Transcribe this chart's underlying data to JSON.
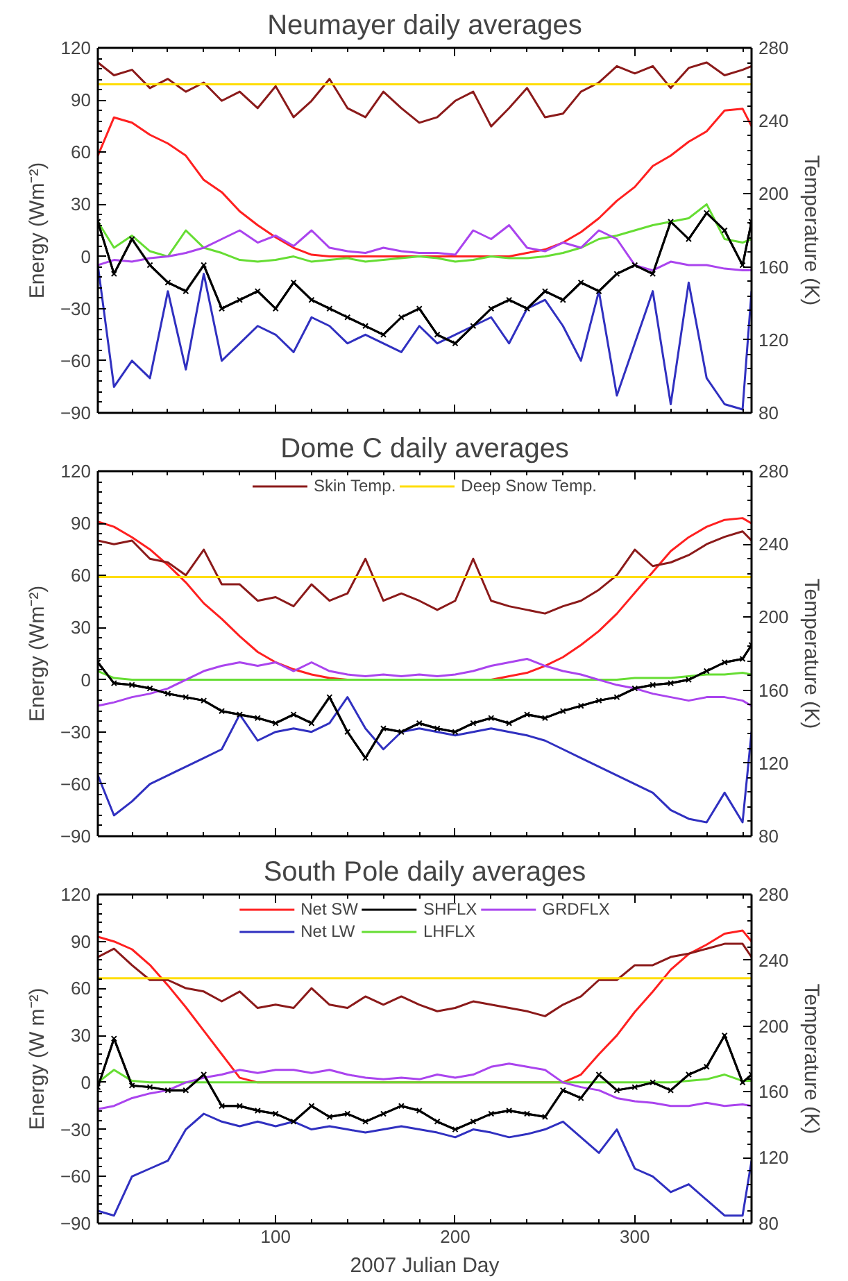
{
  "chart_data": [
    {
      "type": "line",
      "title": "Neumayer daily averages",
      "ylabel": "Energy (Wm⁻²)",
      "y2label": "Temperature (K)",
      "x": [
        1,
        10,
        20,
        30,
        40,
        50,
        60,
        70,
        80,
        90,
        100,
        110,
        120,
        130,
        140,
        150,
        160,
        170,
        180,
        190,
        200,
        210,
        220,
        230,
        240,
        250,
        260,
        270,
        280,
        290,
        300,
        310,
        320,
        330,
        340,
        350,
        360,
        365
      ],
      "xlim": [
        1,
        365
      ],
      "xticks": [
        100,
        200,
        300
      ],
      "ylim": [
        -90,
        120
      ],
      "yticks": [
        -90,
        -60,
        -30,
        0,
        30,
        60,
        90,
        120
      ],
      "y2lim": [
        80,
        280
      ],
      "y2ticks": [
        80,
        120,
        160,
        200,
        240,
        280
      ],
      "tick_labels": "y",
      "grid": false,
      "series": [
        {
          "color": "#ff2020",
          "values": [
            58,
            80,
            77,
            70,
            65,
            58,
            44,
            37,
            26,
            18,
            11,
            5,
            1,
            0,
            0,
            0,
            0,
            0,
            0,
            0,
            0,
            0,
            0,
            0,
            2,
            4,
            8,
            14,
            22,
            32,
            40,
            52,
            58,
            66,
            72,
            84,
            85,
            75
          ]
        },
        {
          "color": "#3030c0",
          "values": [
            -5,
            -75,
            -60,
            -70,
            -20,
            -65,
            -10,
            -60,
            -50,
            -40,
            -45,
            -55,
            -35,
            -40,
            -50,
            -45,
            -50,
            -55,
            -40,
            -50,
            -45,
            -40,
            -35,
            -50,
            -30,
            -25,
            -40,
            -60,
            -20,
            -80,
            -50,
            -20,
            -85,
            -15,
            -70,
            -85,
            -88,
            -20
          ]
        },
        {
          "color": "#000000",
          "marker": "cross",
          "values": [
            20,
            -10,
            10,
            -5,
            -15,
            -20,
            -5,
            -30,
            -25,
            -20,
            -30,
            -15,
            -25,
            -30,
            -35,
            -40,
            -45,
            -35,
            -30,
            -45,
            -50,
            -40,
            -30,
            -25,
            -30,
            -20,
            -25,
            -15,
            -20,
            -10,
            -5,
            -10,
            20,
            10,
            25,
            15,
            -5,
            20
          ]
        },
        {
          "color": "#66dd33",
          "values": [
            20,
            5,
            12,
            3,
            0,
            15,
            5,
            2,
            -2,
            -3,
            -2,
            0,
            -3,
            -2,
            -1,
            -3,
            -2,
            -1,
            0,
            -1,
            -3,
            -2,
            0,
            -1,
            -1,
            0,
            2,
            5,
            10,
            12,
            15,
            18,
            20,
            22,
            30,
            10,
            8,
            10
          ]
        },
        {
          "color": "#aa44ee",
          "values": [
            -5,
            -2,
            -3,
            -1,
            0,
            2,
            5,
            10,
            15,
            8,
            12,
            6,
            15,
            5,
            3,
            2,
            5,
            3,
            2,
            2,
            1,
            15,
            10,
            18,
            5,
            3,
            8,
            5,
            15,
            10,
            -5,
            -8,
            -3,
            -5,
            -5,
            -7,
            -8,
            -8
          ]
        },
        {
          "color": "#8b1a1a",
          "axis": "y2",
          "values": [
            272,
            265,
            268,
            258,
            263,
            256,
            261,
            251,
            256,
            247,
            259,
            242,
            251,
            263,
            247,
            242,
            256,
            247,
            239,
            242,
            251,
            256,
            237,
            247,
            258,
            242,
            244,
            256,
            261,
            270,
            266,
            270,
            258,
            269,
            272,
            265,
            268,
            270
          ]
        },
        {
          "color": "#ffdd00",
          "axis": "y2",
          "values": [
            260,
            260,
            260,
            260,
            260,
            260,
            260,
            260,
            260,
            260,
            260,
            260,
            260,
            260,
            260,
            260,
            260,
            260,
            260,
            260,
            260,
            260,
            260,
            260,
            260,
            260,
            260,
            260,
            260,
            260,
            260,
            260,
            260,
            260,
            260,
            260,
            260,
            260
          ]
        }
      ]
    },
    {
      "type": "line",
      "title": "Dome C daily averages",
      "ylabel": "Energy (Wm⁻²)",
      "y2label": "Temperature (K)",
      "x": [
        1,
        10,
        20,
        30,
        40,
        50,
        60,
        70,
        80,
        90,
        100,
        110,
        120,
        130,
        140,
        150,
        160,
        170,
        180,
        190,
        200,
        210,
        220,
        230,
        240,
        250,
        260,
        270,
        280,
        290,
        300,
        310,
        320,
        330,
        340,
        350,
        360,
        365
      ],
      "xlim": [
        1,
        365
      ],
      "xticks": [
        100,
        200,
        300
      ],
      "ylim": [
        -90,
        120
      ],
      "yticks": [
        -90,
        -60,
        -30,
        0,
        30,
        60,
        90,
        120
      ],
      "y2lim": [
        80,
        280
      ],
      "y2ticks": [
        80,
        120,
        160,
        200,
        240,
        280
      ],
      "tick_labels": "y",
      "grid": false,
      "legend": "top",
      "series": [
        {
          "color": "#ff2020",
          "values": [
            91,
            88,
            82,
            75,
            66,
            56,
            44,
            35,
            25,
            16,
            10,
            6,
            3,
            1,
            0,
            0,
            0,
            0,
            0,
            0,
            0,
            0,
            0,
            2,
            4,
            8,
            13,
            20,
            28,
            38,
            50,
            62,
            74,
            82,
            88,
            92,
            93,
            90
          ]
        },
        {
          "color": "#3030c0",
          "values": [
            -55,
            -78,
            -70,
            -60,
            -55,
            -50,
            -45,
            -40,
            -20,
            -35,
            -30,
            -28,
            -30,
            -25,
            -10,
            -28,
            -40,
            -30,
            -28,
            -30,
            -32,
            -30,
            -28,
            -30,
            -32,
            -35,
            -40,
            -45,
            -50,
            -55,
            -60,
            -65,
            -75,
            -80,
            -82,
            -65,
            -82,
            -30
          ]
        },
        {
          "color": "#000000",
          "marker": "cross",
          "values": [
            10,
            -2,
            -3,
            -5,
            -8,
            -10,
            -12,
            -18,
            -20,
            -22,
            -25,
            -20,
            -25,
            -10,
            -30,
            -45,
            -28,
            -30,
            -25,
            -28,
            -30,
            -25,
            -22,
            -25,
            -20,
            -22,
            -18,
            -15,
            -12,
            -10,
            -5,
            -3,
            -2,
            0,
            5,
            10,
            12,
            20
          ]
        },
        {
          "color": "#66dd33",
          "values": [
            5,
            1,
            0,
            0,
            0,
            0,
            0,
            0,
            0,
            0,
            0,
            0,
            0,
            0,
            0,
            0,
            0,
            0,
            0,
            0,
            0,
            0,
            0,
            0,
            0,
            0,
            0,
            0,
            0,
            0,
            1,
            1,
            1,
            2,
            3,
            3,
            4,
            3
          ]
        },
        {
          "color": "#aa44ee",
          "values": [
            -15,
            -13,
            -10,
            -8,
            -5,
            0,
            5,
            8,
            10,
            8,
            10,
            5,
            10,
            5,
            3,
            2,
            3,
            2,
            3,
            2,
            3,
            5,
            8,
            10,
            12,
            8,
            5,
            3,
            0,
            -3,
            -5,
            -8,
            -10,
            -12,
            -10,
            -10,
            -12,
            -15
          ]
        },
        {
          "name": "Skin Temp.",
          "color": "#8b1a1a",
          "axis": "y2",
          "values": [
            242,
            240,
            242,
            232,
            230,
            223,
            237,
            218,
            218,
            209,
            211,
            206,
            218,
            209,
            213,
            232,
            209,
            213,
            209,
            204,
            209,
            232,
            209,
            206,
            204,
            202,
            206,
            209,
            215,
            223,
            237,
            228,
            230,
            234,
            240,
            244,
            247,
            242
          ]
        },
        {
          "name": "Deep Snow Temp.",
          "color": "#ffdd00",
          "axis": "y2",
          "values": [
            222,
            222,
            222,
            222,
            222,
            222,
            222,
            222,
            222,
            222,
            222,
            222,
            222,
            222,
            222,
            222,
            222,
            222,
            222,
            222,
            222,
            222,
            222,
            222,
            222,
            222,
            222,
            222,
            222,
            222,
            222,
            222,
            222,
            222,
            222,
            222,
            222,
            222
          ]
        }
      ]
    },
    {
      "type": "line",
      "title": "South Pole daily averages",
      "xlabel": "2007 Julian Day",
      "ylabel": "Energy (W m⁻²)",
      "y2label": "Temperature (K)",
      "x": [
        1,
        10,
        20,
        30,
        40,
        50,
        60,
        70,
        80,
        90,
        100,
        110,
        120,
        130,
        140,
        150,
        160,
        170,
        180,
        190,
        200,
        210,
        220,
        230,
        240,
        250,
        260,
        270,
        280,
        290,
        300,
        310,
        320,
        330,
        340,
        350,
        360,
        365
      ],
      "xlim": [
        1,
        365
      ],
      "xticks": [
        100,
        200,
        300
      ],
      "ylim": [
        -90,
        120
      ],
      "yticks": [
        -90,
        -60,
        -30,
        0,
        30,
        60,
        90,
        120
      ],
      "y2lim": [
        80,
        280
      ],
      "y2ticks": [
        80,
        120,
        160,
        200,
        240,
        280
      ],
      "grid": false,
      "legend": "top",
      "series": [
        {
          "name": "Net SW",
          "color": "#ff2020",
          "values": [
            93,
            90,
            85,
            75,
            62,
            48,
            33,
            18,
            3,
            0,
            0,
            0,
            0,
            0,
            0,
            0,
            0,
            0,
            0,
            0,
            0,
            0,
            0,
            0,
            0,
            0,
            0,
            5,
            18,
            30,
            45,
            58,
            72,
            82,
            88,
            95,
            97,
            90
          ]
        },
        {
          "name": "Net LW",
          "color": "#3030c0",
          "values": [
            -82,
            -85,
            -60,
            -55,
            -50,
            -30,
            -20,
            -25,
            -28,
            -25,
            -28,
            -25,
            -30,
            -28,
            -30,
            -32,
            -30,
            -28,
            -30,
            -32,
            -35,
            -30,
            -32,
            -35,
            -33,
            -30,
            -25,
            -35,
            -45,
            -30,
            -55,
            -60,
            -70,
            -65,
            -75,
            -85,
            -85,
            -50
          ]
        },
        {
          "name": "SHFLX",
          "color": "#000000",
          "marker": "cross",
          "values": [
            -3,
            28,
            -2,
            -3,
            -5,
            -5,
            5,
            -15,
            -15,
            -18,
            -20,
            -25,
            -15,
            -22,
            -20,
            -25,
            -20,
            -15,
            -18,
            -25,
            -30,
            -25,
            -20,
            -18,
            -20,
            -22,
            -5,
            -10,
            5,
            -5,
            -3,
            0,
            -5,
            5,
            10,
            30,
            0,
            5
          ]
        },
        {
          "name": "LHFLX",
          "color": "#66dd33",
          "values": [
            0,
            8,
            1,
            0,
            0,
            0,
            0,
            0,
            0,
            0,
            0,
            0,
            0,
            0,
            0,
            0,
            0,
            0,
            0,
            0,
            0,
            0,
            0,
            0,
            0,
            0,
            0,
            0,
            0,
            0,
            0,
            0,
            0,
            1,
            2,
            5,
            1,
            1
          ]
        },
        {
          "name": "GRDFLX",
          "color": "#aa44ee",
          "values": [
            -17,
            -15,
            -10,
            -7,
            -5,
            0,
            3,
            5,
            8,
            6,
            8,
            8,
            6,
            8,
            5,
            3,
            2,
            3,
            2,
            5,
            3,
            5,
            10,
            12,
            10,
            8,
            0,
            -3,
            -5,
            -10,
            -12,
            -13,
            -15,
            -15,
            -13,
            -15,
            -14,
            -15
          ]
        },
        {
          "color": "#8b1a1a",
          "axis": "y2",
          "values": [
            242,
            247,
            237,
            228,
            228,
            223,
            221,
            215,
            221,
            211,
            213,
            211,
            223,
            213,
            211,
            218,
            213,
            218,
            213,
            209,
            211,
            215,
            213,
            211,
            209,
            206,
            213,
            218,
            228,
            228,
            237,
            237,
            242,
            244,
            247,
            250,
            250,
            242
          ]
        },
        {
          "color": "#ffdd00",
          "axis": "y2",
          "values": [
            229,
            229,
            229,
            229,
            229,
            229,
            229,
            229,
            229,
            229,
            229,
            229,
            229,
            229,
            229,
            229,
            229,
            229,
            229,
            229,
            229,
            229,
            229,
            229,
            229,
            229,
            229,
            229,
            229,
            229,
            229,
            229,
            229,
            229,
            229,
            229,
            229,
            229
          ]
        }
      ]
    }
  ]
}
